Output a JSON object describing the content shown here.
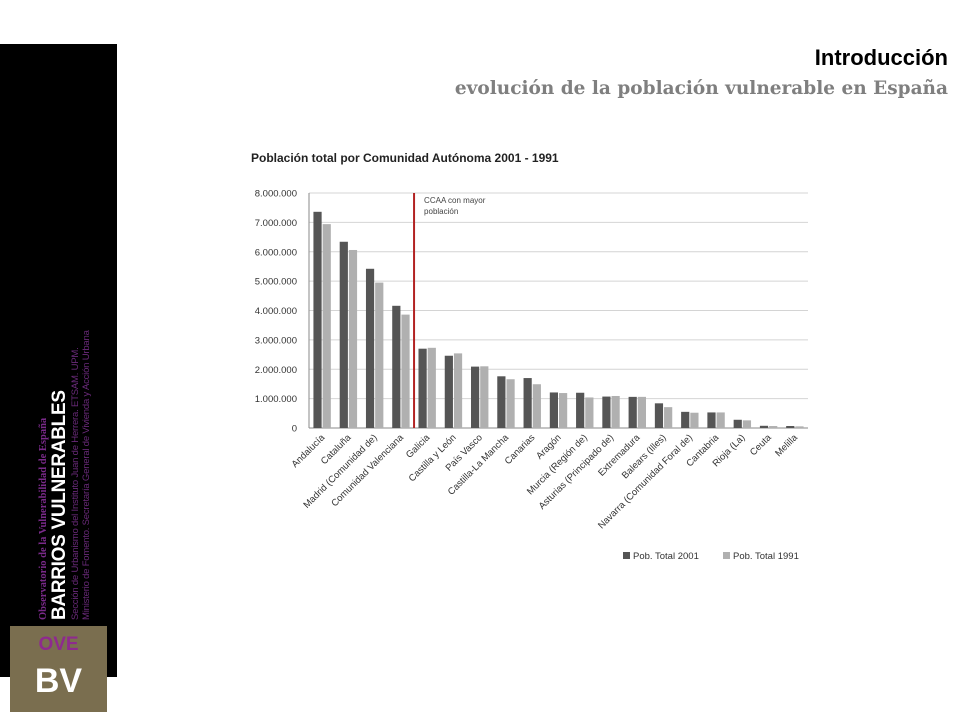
{
  "header": {
    "title": "Introducción",
    "subtitle": "evolución de la población vulnerable en España"
  },
  "sidebar": {
    "observatorio": "Observatorio de la Vulnerabilidad de España",
    "brand": "BARRIOS VULNERABLES",
    "line1": "Sección de Urbanismo del Instituto Juan de Herrera. ETSAM. UPM.",
    "line2": "Ministerio de Fomento. Secretaría General de Vivienda y Acción Urbana",
    "logo_top": "OVE",
    "logo_bottom": "BV"
  },
  "colors": {
    "series_2001": "#555555",
    "series_1991": "#b0b0b0",
    "marker_line": "#b22222",
    "logo_bg": "#7a6e4f",
    "logo_text": "#8e2a8e"
  },
  "chart_data": {
    "type": "bar",
    "title": "Población total por Comunidad Autónoma 2001 - 1991",
    "xlabel": "",
    "ylabel": "",
    "ylim": [
      0,
      8000000
    ],
    "ytick_labels": [
      "0",
      "1.000.000",
      "2.000.000",
      "3.000.000",
      "4.000.000",
      "5.000.000",
      "6.000.000",
      "7.000.000",
      "8.000.000"
    ],
    "grid": true,
    "legend_position": "bottom-right",
    "categories": [
      "Andalucía",
      "Cataluña",
      "Madrid (Comunidad de)",
      "Comunidad Valenciana",
      "Galicia",
      "Castilla y León",
      "País Vasco",
      "Castilla-La Mancha",
      "Canarias",
      "Aragón",
      "Murcia (Región de)",
      "Asturias (Principado de)",
      "Extremadura",
      "Balears (Illes)",
      "Navarra (Comunidad Foral de)",
      "Cantabria",
      "Rioja (La)",
      "Ceuta",
      "Melilla"
    ],
    "series": [
      {
        "name": "Pob. Total 2001",
        "values": [
          7360000,
          6340000,
          5420000,
          4160000,
          2700000,
          2460000,
          2090000,
          1760000,
          1700000,
          1210000,
          1200000,
          1070000,
          1060000,
          840000,
          550000,
          530000,
          280000,
          75000,
          68000
        ]
      },
      {
        "name": "Pob. Total 1991",
        "values": [
          6940000,
          6060000,
          4950000,
          3860000,
          2730000,
          2540000,
          2100000,
          1660000,
          1490000,
          1190000,
          1040000,
          1090000,
          1060000,
          710000,
          520000,
          530000,
          260000,
          67000,
          56000
        ]
      }
    ],
    "annotation": {
      "text_lines": [
        "CCAA con mayor",
        "población"
      ],
      "after_category_index": 3
    }
  }
}
